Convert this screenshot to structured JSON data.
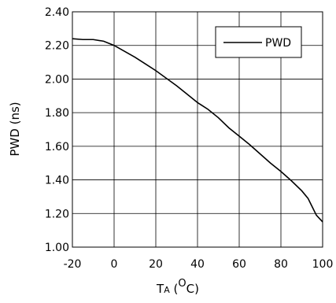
{
  "chart_data": {
    "type": "line",
    "title": "",
    "ylabel": "PWD (ns)",
    "xlabel": {
      "main": "T",
      "subscript": "A",
      "open": " (",
      "degree": "O",
      "unit": "C)"
    },
    "xlim": [
      -20,
      100
    ],
    "ylim": [
      1.0,
      2.4
    ],
    "x_ticks": [
      -20,
      0,
      20,
      40,
      60,
      80,
      100
    ],
    "x_tick_labels": [
      "-20",
      "0",
      "20",
      "40",
      "60",
      "80",
      "100"
    ],
    "y_ticks": [
      1.0,
      1.2,
      1.4,
      1.6,
      1.8,
      2.0,
      2.2,
      2.4
    ],
    "y_tick_labels": [
      "1.00",
      "1.20",
      "1.40",
      "1.60",
      "1.80",
      "2.00",
      "2.20",
      "2.40"
    ],
    "grid": true,
    "legend": "top-right",
    "series": [
      {
        "name": "PWD",
        "color": "#000000",
        "x": [
          -20,
          -15,
          -10,
          -5,
          0,
          5,
          10,
          15,
          20,
          25,
          30,
          35,
          40,
          45,
          50,
          55,
          60,
          65,
          70,
          75,
          80,
          85,
          90,
          93,
          95,
          97,
          100
        ],
        "y": [
          2.24,
          2.235,
          2.235,
          2.225,
          2.2,
          2.165,
          2.13,
          2.09,
          2.05,
          2.005,
          1.96,
          1.91,
          1.86,
          1.82,
          1.77,
          1.71,
          1.66,
          1.61,
          1.555,
          1.5,
          1.45,
          1.395,
          1.335,
          1.29,
          1.24,
          1.19,
          1.15
        ]
      }
    ]
  }
}
